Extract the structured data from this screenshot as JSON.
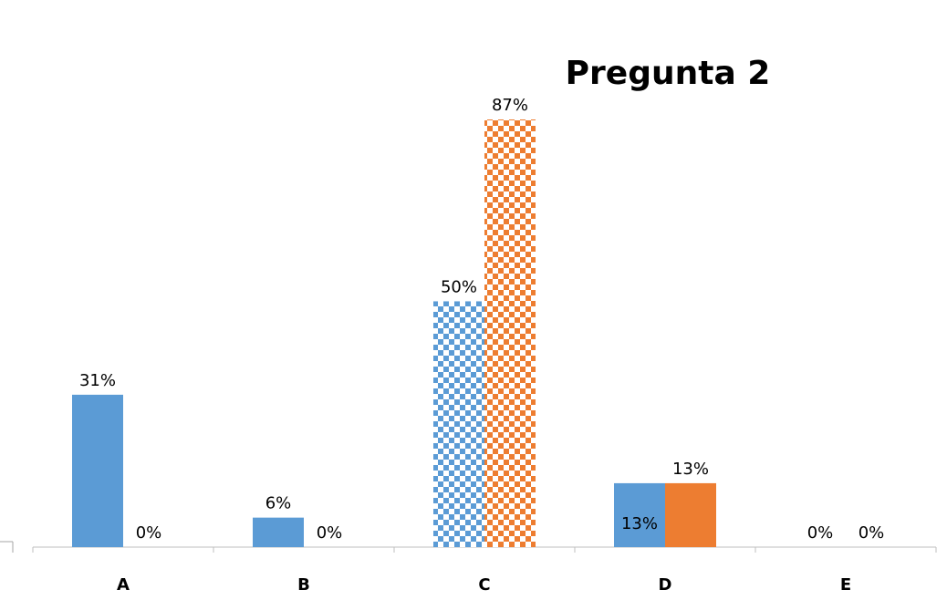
{
  "chart_data": {
    "type": "bar",
    "title": "Pregunta 2",
    "categories": [
      "A",
      "B",
      "C",
      "D",
      "E"
    ],
    "series": [
      {
        "values": [
          31,
          6,
          50,
          13,
          0
        ],
        "labels": [
          "31%",
          "6%",
          "50%",
          "13%",
          "0%"
        ],
        "color": "#5b9bd5"
      },
      {
        "values": [
          0,
          0,
          87,
          13,
          0
        ],
        "labels": [
          "0%",
          "0%",
          "87%",
          "13%",
          "0%"
        ],
        "color": "#ed7d31"
      }
    ],
    "highlight_pattern": {
      "category": "C",
      "style": "checkerboard"
    },
    "ylim": [
      0,
      100
    ],
    "xlabel": "",
    "ylabel": "",
    "legend": "none",
    "grid": false
  }
}
